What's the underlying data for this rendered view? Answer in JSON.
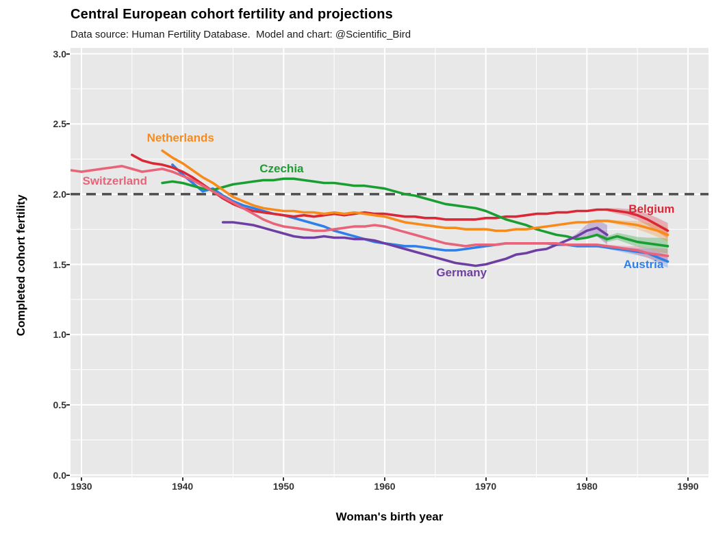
{
  "header": {
    "title": "Central European cohort fertility and projections",
    "subtitle": "Data source: Human Fertility Database.  Model and chart: @Scientific_Bird"
  },
  "chart_data": {
    "type": "line",
    "title": "Central European cohort fertility and projections",
    "subtitle": "Data source: Human Fertility Database.  Model and chart: @Scientific_Bird",
    "xlabel": "Woman's birth year",
    "ylabel": "Completed cohort fertility",
    "xlim": [
      1929,
      1992
    ],
    "ylim": [
      0.0,
      3.0
    ],
    "grid": {
      "major": true,
      "minor": true,
      "color": "#ffffff"
    },
    "panel_color": "#e8e8e8",
    "tick_text_color": "#333333",
    "x_ticks": [
      {
        "value": 1930,
        "label": "1930"
      },
      {
        "value": 1940,
        "label": "1940"
      },
      {
        "value": 1950,
        "label": "1950"
      },
      {
        "value": 1960,
        "label": "1960"
      },
      {
        "value": 1970,
        "label": "1970"
      },
      {
        "value": 1980,
        "label": "1980"
      },
      {
        "value": 1990,
        "label": "1990"
      }
    ],
    "y_ticks": [
      {
        "value": 0.0,
        "label": "0.0"
      },
      {
        "value": 0.5,
        "label": "0.5"
      },
      {
        "value": 1.0,
        "label": "1.0"
      },
      {
        "value": 1.5,
        "label": "1.5"
      },
      {
        "value": 2.0,
        "label": "2.0"
      },
      {
        "value": 2.5,
        "label": "2.5"
      },
      {
        "value": 3.0,
        "label": "3.0"
      }
    ],
    "x_minor": [
      1935,
      1945,
      1955,
      1965,
      1975,
      1985
    ],
    "y_minor": [
      0.25,
      0.75,
      1.25,
      1.75,
      2.25,
      2.75
    ],
    "reference_line": {
      "y": 2.0,
      "style": "dashed",
      "color": "#4d4d4d",
      "width": 3.5
    },
    "series": [
      {
        "id": "austria",
        "name": "Austria",
        "color": "#2e7fe8",
        "start_year": 1939,
        "values": [
          2.21,
          2.14,
          2.08,
          2.02,
          2.04,
          1.99,
          1.95,
          1.92,
          1.9,
          1.88,
          1.86,
          1.85,
          1.83,
          1.81,
          1.79,
          1.77,
          1.74,
          1.72,
          1.7,
          1.68,
          1.66,
          1.65,
          1.64,
          1.63,
          1.63,
          1.62,
          1.61,
          1.6,
          1.6,
          1.61,
          1.62,
          1.63,
          1.64,
          1.65,
          1.65,
          1.65,
          1.65,
          1.65,
          1.64,
          1.64,
          1.63,
          1.63,
          1.63,
          1.62,
          1.61,
          1.6,
          1.59,
          1.58,
          1.55,
          1.52
        ],
        "ribbon": {
          "start_year": 1981,
          "half_widths": [
            0,
            0.01,
            0.015,
            0.02,
            0.025,
            0.03,
            0.04,
            0.045
          ]
        },
        "label": {
          "text": "Austria",
          "x": 1985.6,
          "y": 1.5
        }
      },
      {
        "id": "belgium",
        "name": "Belgium",
        "color": "#da2837",
        "start_year": 1935,
        "values": [
          2.28,
          2.24,
          2.22,
          2.21,
          2.19,
          2.16,
          2.12,
          2.07,
          2.02,
          1.97,
          1.93,
          1.9,
          1.88,
          1.87,
          1.86,
          1.85,
          1.84,
          1.85,
          1.84,
          1.85,
          1.86,
          1.85,
          1.86,
          1.87,
          1.86,
          1.86,
          1.85,
          1.84,
          1.84,
          1.83,
          1.83,
          1.82,
          1.82,
          1.82,
          1.82,
          1.83,
          1.83,
          1.84,
          1.84,
          1.85,
          1.86,
          1.86,
          1.87,
          1.87,
          1.88,
          1.88,
          1.89,
          1.89,
          1.88,
          1.87,
          1.85,
          1.82,
          1.78,
          1.74
        ],
        "ribbon": {
          "start_year": 1981,
          "half_widths": [
            0,
            0.01,
            0.02,
            0.025,
            0.035,
            0.04,
            0.05,
            0.055
          ]
        },
        "label": {
          "text": "Belgium",
          "x": 1986.4,
          "y": 1.89
        }
      },
      {
        "id": "czechia",
        "name": "Czechia",
        "color": "#1b9e31",
        "start_year": 1938,
        "values": [
          2.08,
          2.09,
          2.08,
          2.06,
          2.04,
          2.03,
          2.05,
          2.07,
          2.08,
          2.09,
          2.1,
          2.1,
          2.11,
          2.11,
          2.1,
          2.09,
          2.08,
          2.08,
          2.07,
          2.06,
          2.06,
          2.05,
          2.04,
          2.02,
          2.0,
          1.99,
          1.97,
          1.95,
          1.93,
          1.92,
          1.91,
          1.9,
          1.88,
          1.85,
          1.82,
          1.8,
          1.78,
          1.75,
          1.73,
          1.71,
          1.7,
          1.68,
          1.69,
          1.71,
          1.68,
          1.7,
          1.68,
          1.66,
          1.65,
          1.64,
          1.63
        ],
        "ribbon": {
          "start_year": 1980,
          "half_widths": [
            0,
            0.01,
            0.02,
            0.025,
            0.03,
            0.035,
            0.04,
            0.05,
            0.055
          ]
        },
        "label": {
          "text": "Czechia",
          "x": 1949.8,
          "y": 2.18
        }
      },
      {
        "id": "germany",
        "name": "Germany",
        "color": "#6e3fa3",
        "start_year": 1944,
        "values": [
          1.8,
          1.8,
          1.79,
          1.78,
          1.76,
          1.74,
          1.72,
          1.7,
          1.69,
          1.69,
          1.7,
          1.69,
          1.69,
          1.68,
          1.68,
          1.67,
          1.65,
          1.63,
          1.61,
          1.59,
          1.57,
          1.55,
          1.53,
          1.51,
          1.5,
          1.49,
          1.5,
          1.52,
          1.54,
          1.57,
          1.58,
          1.6,
          1.61,
          1.64,
          1.67,
          1.7,
          1.74,
          1.76,
          1.71
        ],
        "ribbon": {
          "start_year": 1978,
          "half_widths": [
            0,
            0.02,
            0.045,
            0.06,
            0.07
          ]
        },
        "label": {
          "text": "Germany",
          "x": 1967.6,
          "y": 1.44
        }
      },
      {
        "id": "netherlands",
        "name": "Netherlands",
        "color": "#f68b1c",
        "start_year": 1938,
        "values": [
          2.31,
          2.26,
          2.22,
          2.17,
          2.12,
          2.08,
          2.03,
          1.98,
          1.95,
          1.92,
          1.9,
          1.89,
          1.88,
          1.88,
          1.87,
          1.87,
          1.86,
          1.87,
          1.86,
          1.87,
          1.86,
          1.85,
          1.84,
          1.82,
          1.8,
          1.79,
          1.78,
          1.77,
          1.76,
          1.76,
          1.75,
          1.75,
          1.75,
          1.74,
          1.74,
          1.75,
          1.75,
          1.76,
          1.77,
          1.78,
          1.79,
          1.8,
          1.8,
          1.81,
          1.81,
          1.8,
          1.79,
          1.78,
          1.76,
          1.74,
          1.71
        ],
        "ribbon": {
          "start_year": 1981,
          "half_widths": [
            0,
            0.01,
            0.015,
            0.02,
            0.03,
            0.035,
            0.045,
            0.05
          ]
        },
        "label": {
          "text": "Netherlands",
          "x": 1939.8,
          "y": 2.4
        }
      },
      {
        "id": "switzerland",
        "name": "Switzerland",
        "color": "#e8647a",
        "start_year": 1929,
        "values": [
          2.17,
          2.16,
          2.17,
          2.18,
          2.19,
          2.2,
          2.18,
          2.16,
          2.17,
          2.18,
          2.16,
          2.13,
          2.1,
          2.06,
          2.02,
          1.98,
          1.94,
          1.9,
          1.86,
          1.82,
          1.79,
          1.77,
          1.76,
          1.75,
          1.74,
          1.74,
          1.75,
          1.76,
          1.77,
          1.77,
          1.78,
          1.77,
          1.75,
          1.73,
          1.71,
          1.69,
          1.67,
          1.65,
          1.64,
          1.63,
          1.64,
          1.64,
          1.64,
          1.65,
          1.65,
          1.65,
          1.65,
          1.65,
          1.65,
          1.64,
          1.64,
          1.64,
          1.64,
          1.63,
          1.62,
          1.61,
          1.6,
          1.58,
          1.57,
          1.56
        ],
        "ribbon": {
          "start_year": 1981,
          "half_widths": [
            0,
            0.01,
            0.015,
            0.02,
            0.03,
            0.035,
            0.045,
            0.05
          ]
        },
        "label": {
          "text": "Switzerland",
          "x": 1933.3,
          "y": 2.09
        }
      }
    ]
  }
}
